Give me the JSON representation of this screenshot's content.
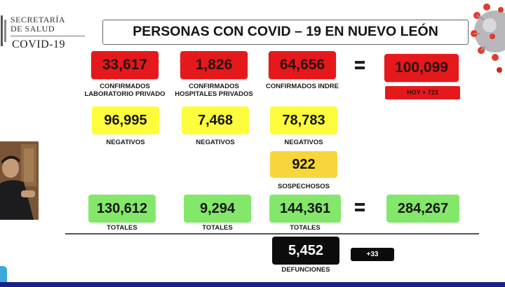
{
  "header": {
    "org_line1": "SECRETARÍA",
    "org_line2": "DE SALUD",
    "program": "COVID-19",
    "title": "PERSONAS CON COVID – 19 EN NUEVO LEÓN"
  },
  "confirmados": {
    "privado_lab": {
      "value": "33,617",
      "label_line1": "CONFIRMADOS",
      "label_line2": "LABORATORIO PRIVADO"
    },
    "privado_hosp": {
      "value": "1,826",
      "label_line1": "CONFIRMADOS",
      "label_line2": "HOSPITALES PRIVADOS"
    },
    "indre": {
      "value": "64,656",
      "label": "CONFIRMADOS INDRE"
    },
    "total": {
      "value": "100,099"
    },
    "hoy": "HOY + 723"
  },
  "negativos": {
    "privado_lab": {
      "value": "96,995",
      "label": "NEGATIVOS"
    },
    "privado_hosp": {
      "value": "7,468",
      "label": "NEGATIVOS"
    },
    "indre": {
      "value": "78,783",
      "label": "NEGATIVOS"
    }
  },
  "sospechosos": {
    "value": "922",
    "label": "SOSPECHOSOS"
  },
  "totales": {
    "privado_lab": {
      "value": "130,612",
      "label": "TOTALES"
    },
    "privado_hosp": {
      "value": "9,294",
      "label": "TOTALES"
    },
    "indre": {
      "value": "144,361",
      "label": "TOTALES"
    },
    "grand_total": {
      "value": "284,267"
    }
  },
  "defunciones": {
    "value": "5,452",
    "label": "DEFUNCIONES",
    "delta": "+33"
  },
  "colors": {
    "red": "#e5191c",
    "yellow": "#fdfd3d",
    "amber": "#f8d53b",
    "green": "#83e86a",
    "black": "#0c0c0c"
  }
}
